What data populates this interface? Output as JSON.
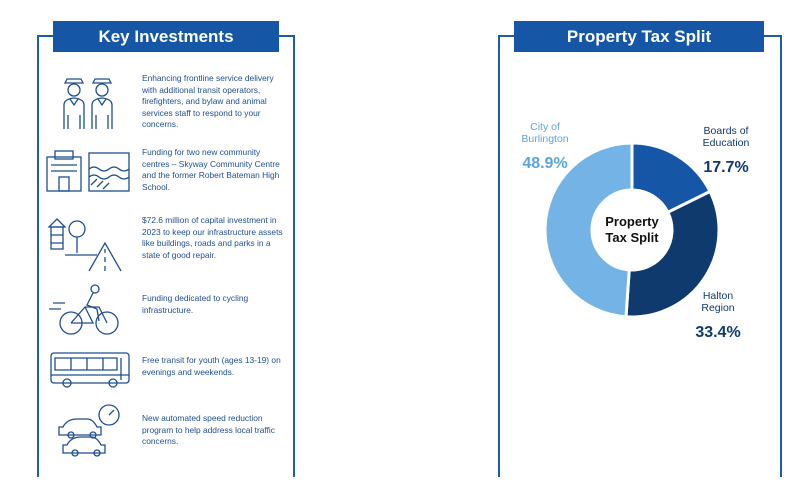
{
  "key_investments": {
    "title": "Key Investments",
    "items": [
      {
        "icon": "service-staff-icon",
        "text": "Enhancing frontline service delivery with additional transit operators, firefighters, and bylaw and animal services staff to respond to your concerns."
      },
      {
        "icon": "community-centre-icon",
        "text": "Funding for two new community centres – Skyway Community Centre and the former Robert Bateman High School."
      },
      {
        "icon": "infrastructure-icon",
        "text": "$72.6 million of capital investment in 2023 to keep our infrastructure assets like buildings, roads and parks in a state of good repair."
      },
      {
        "icon": "cyclist-icon",
        "text": "Funding dedicated to cycling infrastructure."
      },
      {
        "icon": "bus-icon",
        "text": "Free transit for youth (ages 13-19) on evenings and weekends."
      },
      {
        "icon": "speed-cars-icon",
        "text": "New automated speed reduction program to help address local traffic concerns."
      }
    ]
  },
  "property_tax": {
    "title": "Property Tax Split"
  },
  "chart_data": {
    "type": "pie",
    "title": "Property Tax Split",
    "center_label": [
      "Property",
      "Tax Split"
    ],
    "slices": [
      {
        "label": [
          "Boards of",
          "Education"
        ],
        "value": 17.7,
        "value_label": "17.7%",
        "color": "#1656a6"
      },
      {
        "label": [
          "Halton",
          "Region"
        ],
        "value": 33.4,
        "value_label": "33.4%",
        "color": "#0f3a6e"
      },
      {
        "label": [
          "City of",
          "Burlington"
        ],
        "value": 48.9,
        "value_label": "48.9%",
        "color": "#74b3e6"
      }
    ]
  },
  "colors": {
    "banner": "#1656a6",
    "border": "#1d5da8",
    "text": "#1e4f8f",
    "icon": "#1e4f8f",
    "label_dark": "#0f3a6e",
    "label_light": "#5aa6e0"
  }
}
